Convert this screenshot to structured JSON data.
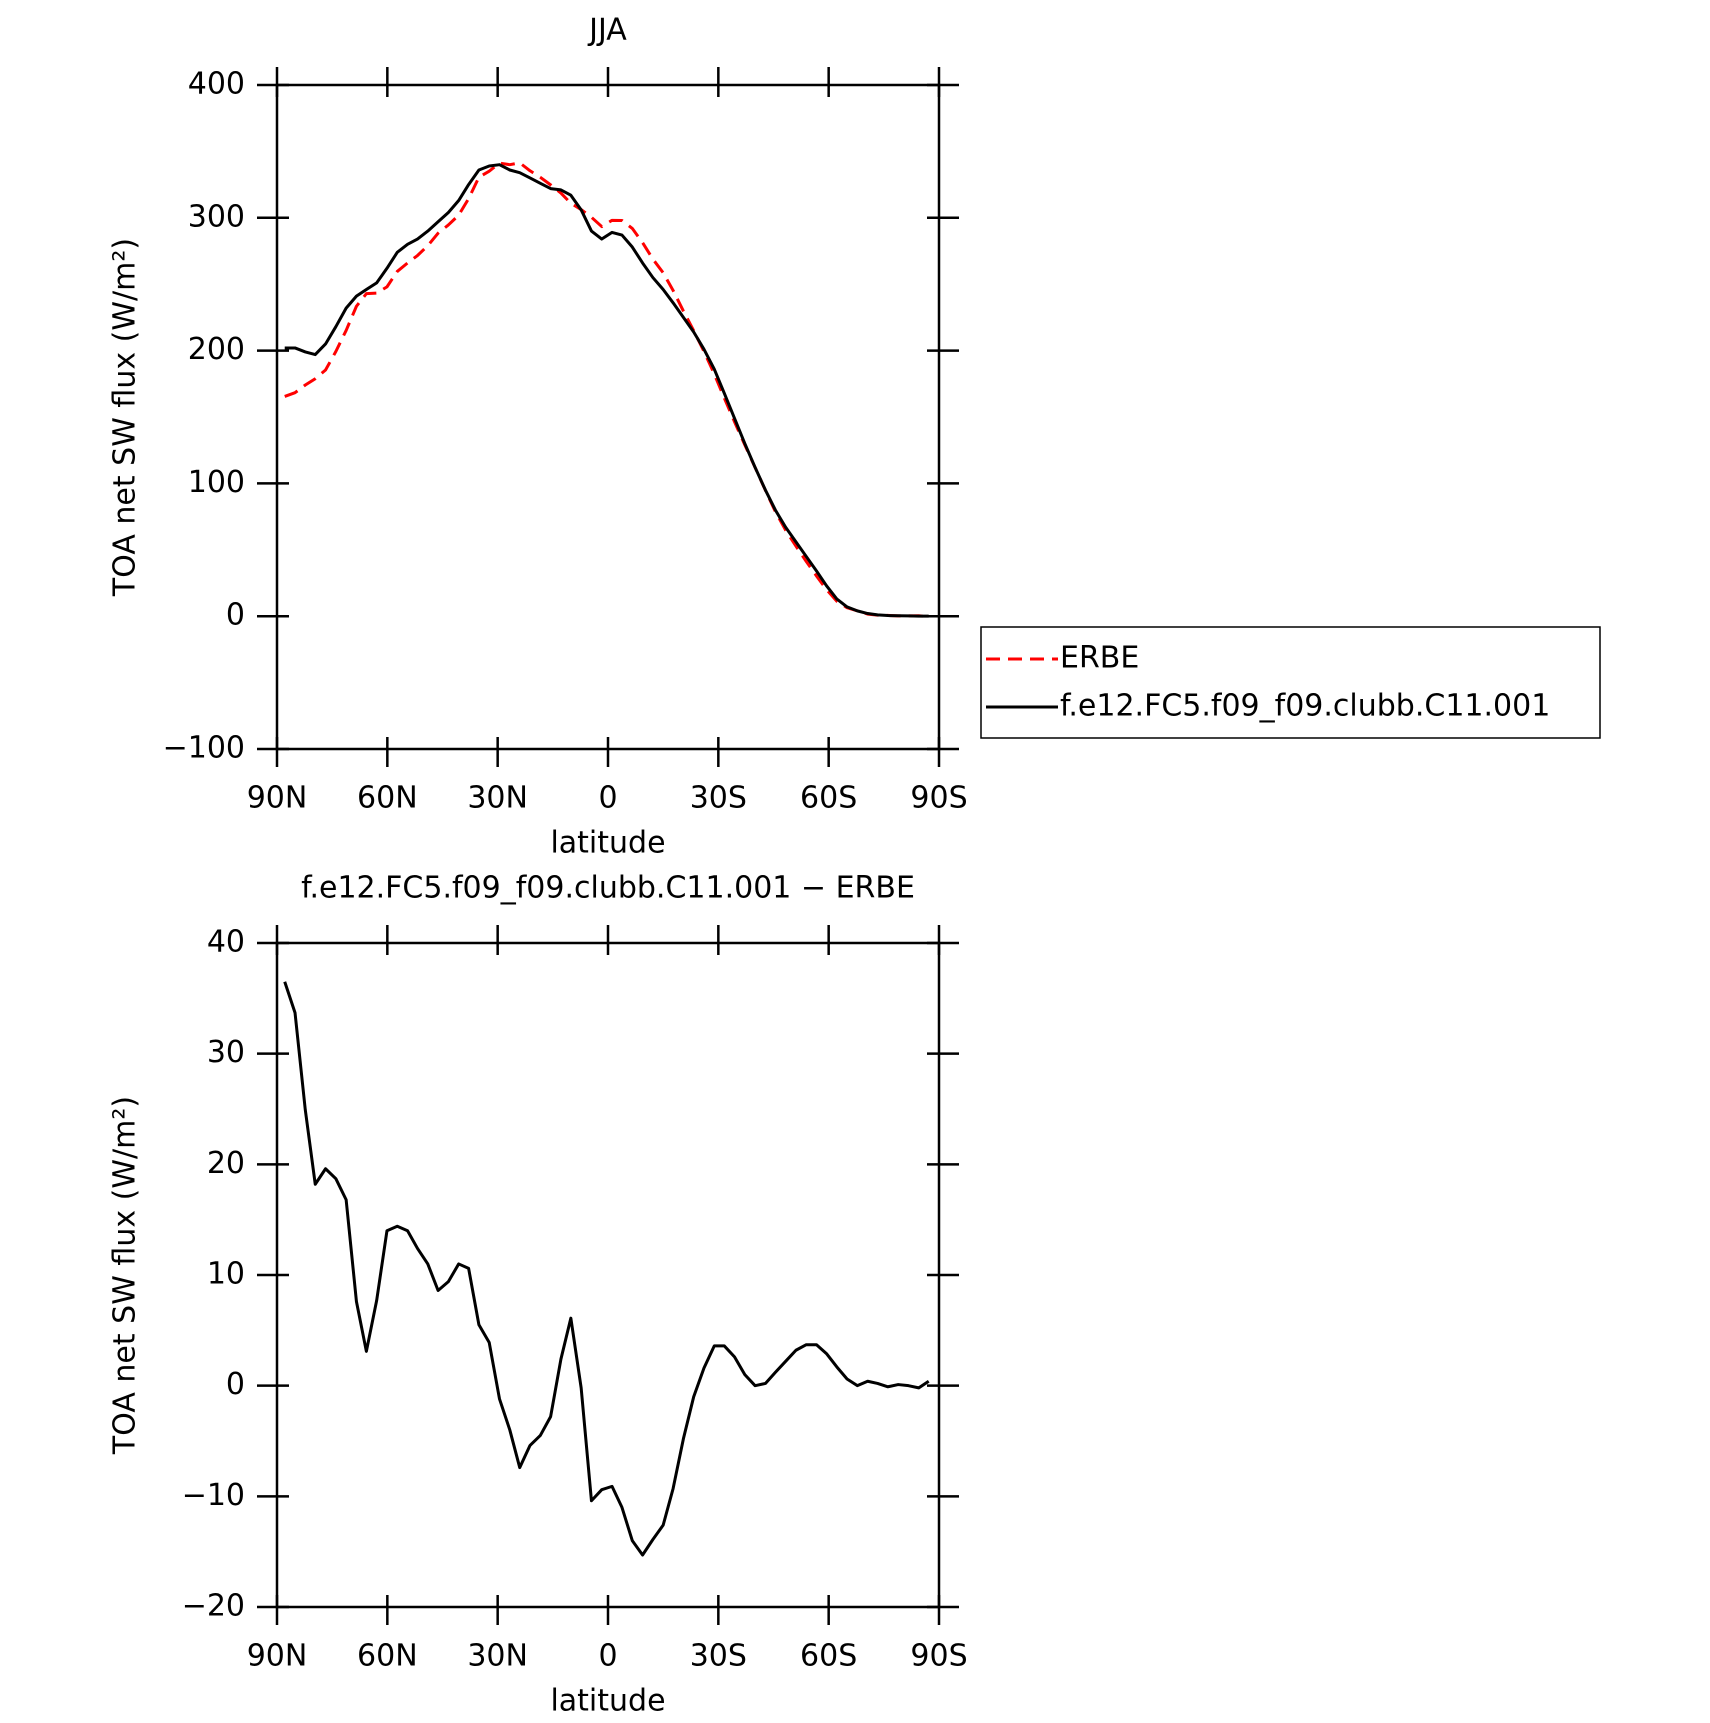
{
  "chart_data": [
    {
      "type": "line",
      "title": "JJA",
      "x_label": "latitude",
      "y_label": "TOA net SW flux (W/m²)",
      "x": [
        87.9,
        85.1,
        82.3,
        79.6,
        76.8,
        74.0,
        71.2,
        68.4,
        65.7,
        62.9,
        60.1,
        57.3,
        54.5,
        51.8,
        49.0,
        46.2,
        43.4,
        40.6,
        37.9,
        35.1,
        32.3,
        29.5,
        26.7,
        24.0,
        21.2,
        18.4,
        15.6,
        12.8,
        10.1,
        7.3,
        4.5,
        1.7,
        -1.1,
        -3.8,
        -6.6,
        -9.4,
        -12.2,
        -15.0,
        -17.7,
        -20.5,
        -23.3,
        -26.1,
        -28.9,
        -31.6,
        -34.4,
        -37.2,
        -40.0,
        -42.8,
        -45.5,
        -48.3,
        -51.1,
        -53.9,
        -56.7,
        -59.4,
        -62.2,
        -65.0,
        -67.8,
        -70.6,
        -73.3,
        -76.1,
        -78.9,
        -81.7,
        -84.5,
        -87.2
      ],
      "series": [
        {
          "name": "ERBE",
          "color": "#ff0000",
          "dashed": true,
          "values": [
            165.5,
            168.3,
            174.1,
            178.8,
            185.4,
            199.3,
            215.2,
            233.4,
            242.9,
            243.3,
            248,
            259.6,
            266,
            271.6,
            279,
            288.4,
            294.6,
            302,
            314.4,
            330.5,
            335.1,
            341.2,
            340,
            341.4,
            335.4,
            330.5,
            324.8,
            318.6,
            310.9,
            306.2,
            300.4,
            293.4,
            298.1,
            298,
            292,
            281.3,
            268.9,
            258.6,
            245.3,
            229.8,
            215,
            199.4,
            182.4,
            164.4,
            146.4,
            129,
            112,
            94.8,
            78.8,
            64.8,
            52.8,
            41.3,
            30.3,
            20.1,
            11.3,
            6.4,
            4,
            1.6,
            0.8,
            0.6,
            0.2,
            0.2,
            0.3,
            -0.3
          ]
        },
        {
          "name": "f.e12.FC5.f09_f09.clubb.C11.001",
          "color": "#000000",
          "dashed": false,
          "values": [
            202,
            202,
            199,
            197,
            205,
            218,
            232,
            241,
            246,
            251,
            262,
            274,
            280,
            284,
            290,
            297,
            304,
            313,
            325,
            336,
            339,
            340,
            336,
            334,
            330,
            326,
            322,
            321,
            317,
            306,
            290,
            284,
            289,
            287,
            278,
            266,
            255,
            246,
            236,
            225,
            214,
            201,
            186,
            168,
            149,
            130,
            112,
            95,
            80,
            67,
            56,
            45,
            34,
            23,
            13,
            7,
            4,
            2,
            1,
            0.5,
            0.3,
            0.2,
            0.1,
            0.1
          ]
        }
      ],
      "xlim": [
        90,
        -90
      ],
      "xticks": [
        {
          "value": 90,
          "label": "90N"
        },
        {
          "value": 60,
          "label": "60N"
        },
        {
          "value": 30,
          "label": "30N"
        },
        0,
        {
          "value": -30,
          "label": "30S"
        },
        {
          "value": -60,
          "label": "60S"
        },
        {
          "value": -90,
          "label": "90S"
        }
      ],
      "ylim": [
        -100,
        400
      ],
      "yticks": [
        {
          "value": -100,
          "label": "−100"
        },
        0,
        100,
        200,
        300,
        400
      ],
      "legend": "right"
    },
    {
      "type": "line",
      "title": "f.e12.FC5.f09_f09.clubb.C11.001 − ERBE",
      "x_label": "latitude",
      "y_label": "TOA net SW flux (W/m²)",
      "x": [
        87.9,
        85.1,
        82.3,
        79.6,
        76.8,
        74.0,
        71.2,
        68.4,
        65.7,
        62.9,
        60.1,
        57.3,
        54.5,
        51.8,
        49.0,
        46.2,
        43.4,
        40.6,
        37.9,
        35.1,
        32.3,
        29.5,
        26.7,
        24.0,
        21.2,
        18.4,
        15.6,
        12.8,
        10.1,
        7.3,
        4.5,
        1.7,
        -1.1,
        -3.8,
        -6.6,
        -9.4,
        -12.2,
        -15.0,
        -17.7,
        -20.5,
        -23.3,
        -26.1,
        -28.9,
        -31.6,
        -34.4,
        -37.2,
        -40.0,
        -42.8,
        -45.5,
        -48.3,
        -51.1,
        -53.9,
        -56.7,
        -59.4,
        -62.2,
        -65.0,
        -67.8,
        -70.6,
        -73.3,
        -76.1,
        -78.9,
        -81.7,
        -84.5,
        -87.2
      ],
      "color": "#000000",
      "values": [
        36.5,
        33.7,
        24.9,
        18.2,
        19.6,
        18.7,
        16.8,
        7.6,
        3.1,
        7.7,
        14,
        14.4,
        14,
        12.4,
        11,
        8.6,
        9.4,
        11,
        10.6,
        5.5,
        3.9,
        -1.2,
        -4,
        -7.4,
        -5.4,
        -4.5,
        -2.8,
        2.4,
        6.1,
        -0.2,
        -10.4,
        -9.4,
        -9.1,
        -11,
        -14,
        -15.3,
        -13.9,
        -12.6,
        -9.3,
        -4.8,
        -1,
        1.6,
        3.6,
        3.6,
        2.6,
        1,
        0,
        0.2,
        1.2,
        2.2,
        3.2,
        3.7,
        3.7,
        2.9,
        1.7,
        0.6,
        0,
        0.4,
        0.2,
        -0.1,
        0.1,
        0,
        -0.2,
        0.4
      ],
      "xlim": [
        90,
        -90
      ],
      "xticks": [
        {
          "value": 90,
          "label": "90N"
        },
        {
          "value": 60,
          "label": "60N"
        },
        {
          "value": 30,
          "label": "30N"
        },
        0,
        {
          "value": -30,
          "label": "30S"
        },
        {
          "value": -60,
          "label": "60S"
        },
        {
          "value": -90,
          "label": "90S"
        }
      ],
      "ylim": [
        -20,
        40
      ],
      "yticks": [
        {
          "value": -20,
          "label": "−20"
        },
        {
          "value": -10,
          "label": "−10"
        },
        0,
        10,
        20,
        30,
        40
      ]
    }
  ]
}
